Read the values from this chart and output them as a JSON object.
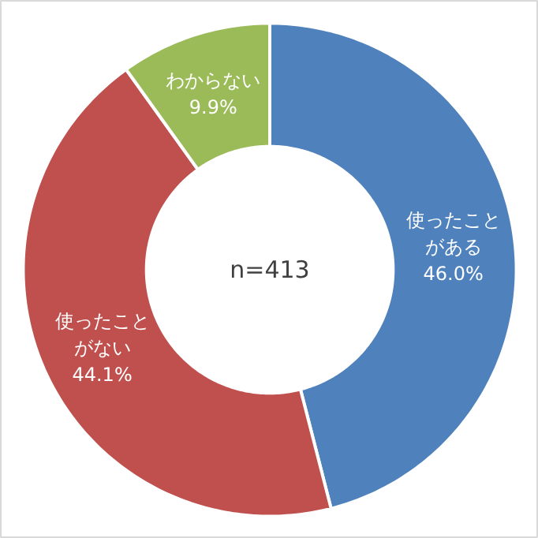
{
  "chart_data": {
    "type": "donut",
    "categories": [
      "使ったことがある",
      "使ったことがない",
      "わからない"
    ],
    "values": [
      46.0,
      44.1,
      9.9
    ],
    "colors": [
      "#4f81bd",
      "#c0504d",
      "#9bbb59"
    ],
    "value_labels": [
      "46.0%",
      "44.1%",
      "9.9%"
    ],
    "annotations": [
      "n=413"
    ]
  }
}
